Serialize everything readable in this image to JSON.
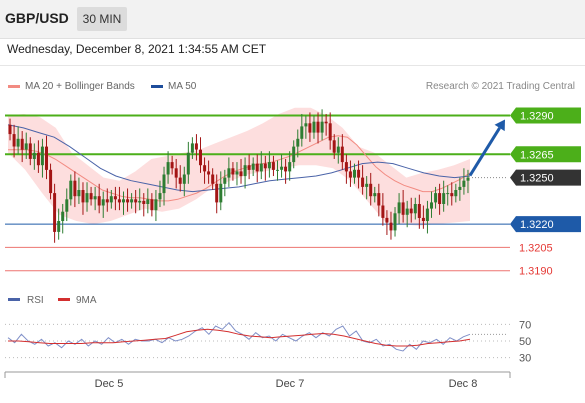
{
  "header": {
    "symbol": "GBP/USD",
    "timeframe": "30 MIN",
    "datetime": "Wednesday, December 8, 2021 1:34:55 AM CET"
  },
  "legend": {
    "ma20": "MA 20 + Bollinger Bands",
    "ma50": "MA 50",
    "credit": "Research © 2021 Trading Central"
  },
  "rsi_legend": {
    "rsi": "RSI",
    "ma9": "9MA"
  },
  "colors": {
    "resistance": "#4caf1a",
    "support": "#1e5aa8",
    "lower": "#e53935",
    "current": "#333333",
    "candle_up": "#2e7d32",
    "candle_down": "#a31515",
    "bollinger": "#fdd6d6",
    "ma20": "#f28b82",
    "ma50": "#4a63a8",
    "arrow": "#1e5aa8"
  },
  "chart_data": {
    "type": "candlestick",
    "ylim": [
      1.3184,
      1.33
    ],
    "levels": [
      {
        "label": "1.3290",
        "value": 1.329,
        "kind": "resistance"
      },
      {
        "label": "1.3265",
        "value": 1.3265,
        "kind": "resistance"
      },
      {
        "label": "1.3250",
        "value": 1.325,
        "kind": "current"
      },
      {
        "label": "1.3220",
        "value": 1.322,
        "kind": "support"
      },
      {
        "label": "1.3205",
        "value": 1.3205,
        "kind": "lower"
      },
      {
        "label": "1.3190",
        "value": 1.319,
        "kind": "lower"
      }
    ],
    "x_ticks": [
      "Dec 5",
      "Dec 7",
      "Dec 8"
    ],
    "closes": [
      1.3278,
      1.327,
      1.3275,
      1.3268,
      1.3272,
      1.3262,
      1.3266,
      1.3258,
      1.327,
      1.3255,
      1.324,
      1.3215,
      1.3222,
      1.3228,
      1.3236,
      1.3248,
      1.3238,
      1.3242,
      1.3234,
      1.324,
      1.3236,
      1.3238,
      1.3232,
      1.3236,
      1.3234,
      1.3238,
      1.3236,
      1.3234,
      1.3236,
      1.3234,
      1.3236,
      1.3234,
      1.3235,
      1.3233,
      1.3236,
      1.3229,
      1.3236,
      1.324,
      1.3252,
      1.326,
      1.3256,
      1.325,
      1.3246,
      1.3252,
      1.3266,
      1.3272,
      1.3268,
      1.3258,
      1.3254,
      1.3252,
      1.3246,
      1.3234,
      1.3246,
      1.325,
      1.3256,
      1.3252,
      1.3254,
      1.3251,
      1.3258,
      1.3255,
      1.3259,
      1.3254,
      1.3259,
      1.3256,
      1.326,
      1.3255,
      1.3255,
      1.3257,
      1.3254,
      1.326,
      1.327,
      1.3275,
      1.3283,
      1.3285,
      1.3279,
      1.3286,
      1.3279,
      1.3286,
      1.3285,
      1.3274,
      1.3266,
      1.327,
      1.326,
      1.3254,
      1.325,
      1.3255,
      1.325,
      1.3244,
      1.3246,
      1.3238,
      1.324,
      1.3232,
      1.3224,
      1.3221,
      1.3216,
      1.3227,
      1.3234,
      1.3226,
      1.323,
      1.3227,
      1.3233,
      1.3224,
      1.3222,
      1.323,
      1.3234,
      1.324,
      1.3233,
      1.324,
      1.324,
      1.3238,
      1.3242,
      1.3244,
      1.3248,
      1.325
    ],
    "ma20": [
      1.3268,
      1.3268,
      1.3268,
      1.3267,
      1.3265,
      1.3262,
      1.3258,
      1.3254,
      1.325,
      1.3246,
      1.3242,
      1.324,
      1.3238,
      1.3237,
      1.3237,
      1.3236,
      1.3235,
      1.3235,
      1.3236,
      1.3238,
      1.324,
      1.3243,
      1.3247,
      1.3251,
      1.3254,
      1.3256,
      1.3258,
      1.3259,
      1.326,
      1.3262,
      1.3264,
      1.3267,
      1.327,
      1.3273,
      1.3276,
      1.3277,
      1.3276,
      1.3271,
      1.3264,
      1.3257,
      1.3252,
      1.3248,
      1.3245,
      1.3243,
      1.3241,
      1.3241,
      1.3243,
      1.3246,
      1.3249,
      1.3253
    ],
    "ma50": [
      1.3284,
      1.3282,
      1.3279,
      1.3276,
      1.327,
      1.3263,
      1.3256,
      1.3251,
      1.3248,
      1.3246,
      1.3244,
      1.3242,
      1.3241,
      1.3242,
      1.3243,
      1.3244,
      1.3246,
      1.3248,
      1.3249,
      1.325,
      1.3251,
      1.3253,
      1.3256,
      1.3259,
      1.326,
      1.3259,
      1.3256,
      1.3253,
      1.3251,
      1.325,
      1.3251
    ],
    "bb_upper": [
      1.329,
      1.3291,
      1.3289,
      1.3282,
      1.3266,
      1.3258,
      1.325,
      1.3248,
      1.3254,
      1.3262,
      1.3264,
      1.3266,
      1.3268,
      1.3272,
      1.3276,
      1.328,
      1.3285,
      1.3291,
      1.3295,
      1.3295,
      1.329,
      1.3282,
      1.327,
      1.3266,
      1.3258,
      1.325,
      1.3253,
      1.3255,
      1.3258,
      1.3262
    ],
    "bb_lower": [
      1.3266,
      1.3255,
      1.324,
      1.3226,
      1.3222,
      1.322,
      1.3222,
      1.3226,
      1.323,
      1.3228,
      1.323,
      1.3236,
      1.3244,
      1.3248,
      1.3252,
      1.3254,
      1.3256,
      1.3258,
      1.3258,
      1.3256,
      1.3248,
      1.3235,
      1.3222,
      1.322,
      1.3219,
      1.322,
      1.3221,
      1.3222
    ],
    "rsi": {
      "levels": [
        "70",
        "50",
        "30"
      ],
      "ylim": [
        20,
        80
      ],
      "rsi": [
        54,
        48,
        58,
        50,
        46,
        52,
        44,
        48,
        42,
        50,
        46,
        52,
        44,
        50,
        46,
        54,
        48,
        52,
        46,
        52,
        50,
        50,
        52,
        48,
        54,
        50,
        52,
        56,
        62,
        66,
        58,
        68,
        64,
        72,
        62,
        58,
        52,
        60,
        54,
        56,
        50,
        58,
        54,
        50,
        56,
        60,
        54,
        60,
        56,
        64,
        68,
        56,
        62,
        50,
        48,
        52,
        44,
        46,
        40,
        38,
        46,
        40,
        50,
        48,
        52,
        46,
        54,
        50,
        55,
        58
      ],
      "ma9": [
        50,
        50,
        49,
        48,
        47,
        47,
        47,
        47,
        48,
        48,
        48,
        49,
        50,
        51,
        52,
        53,
        57,
        61,
        63,
        64,
        63,
        61,
        58,
        56,
        55,
        54,
        55,
        56,
        57,
        58,
        59,
        58,
        56,
        53,
        50,
        47,
        45,
        44,
        44,
        45,
        47,
        48,
        49,
        50,
        52
      ]
    }
  }
}
